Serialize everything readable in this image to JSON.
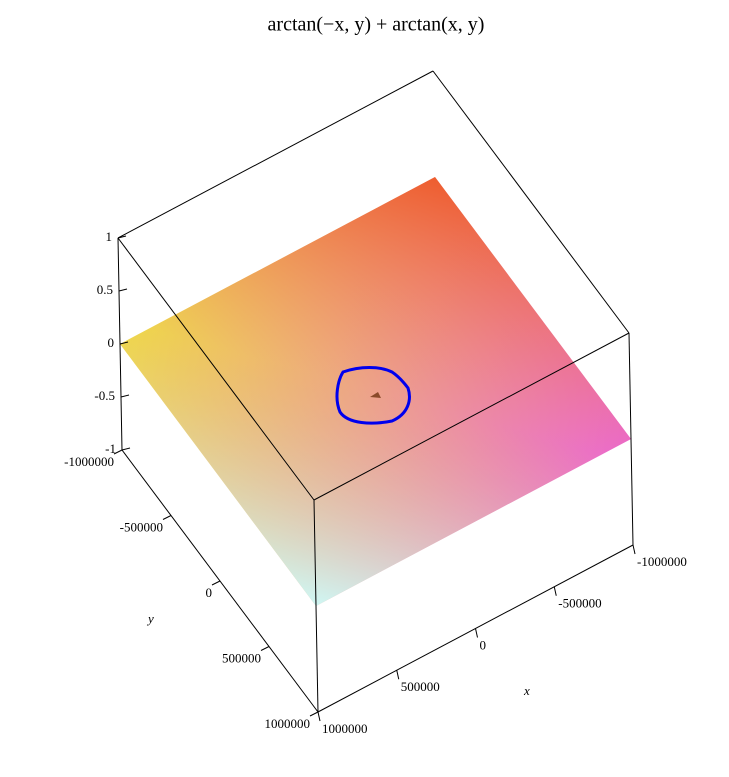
{
  "chart_data": {
    "type": "surface3d",
    "title": "arctan(−x, y) + arctan(x, y)",
    "xlabel": "x",
    "ylabel": "y",
    "xlim": [
      -1000000,
      1000000
    ],
    "ylim": [
      -1000000,
      1000000
    ],
    "zlim": [
      -1,
      1
    ],
    "xticks": [
      -1000000,
      -500000,
      0,
      500000,
      1000000
    ],
    "yticks": [
      -1000000,
      -500000,
      0,
      500000,
      1000000
    ],
    "zticks": [
      -1,
      -0.5,
      0,
      0.5,
      1
    ],
    "z": [
      [
        0,
        0
      ],
      [
        0,
        0
      ]
    ]
  }
}
